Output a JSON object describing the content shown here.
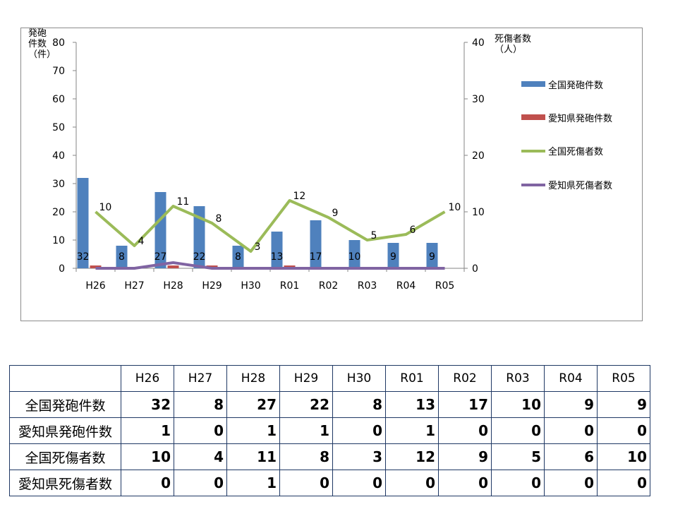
{
  "chart_data": {
    "type": "bar",
    "categories": [
      "H26",
      "H27",
      "H28",
      "H29",
      "H30",
      "R01",
      "R02",
      "R03",
      "R04",
      "R05"
    ],
    "series": [
      {
        "name": "全国発砲件数",
        "chart": "bar",
        "axis": "left",
        "color": "#4f81bd",
        "values": [
          32,
          8,
          27,
          22,
          8,
          13,
          17,
          10,
          9,
          9
        ]
      },
      {
        "name": "愛知県発砲件数",
        "chart": "bar",
        "axis": "left",
        "color": "#c0504d",
        "values": [
          1,
          0,
          1,
          1,
          0,
          1,
          0,
          0,
          0,
          0
        ]
      },
      {
        "name": "全国死傷者数",
        "chart": "line",
        "axis": "right",
        "color": "#9bbb59",
        "values": [
          10,
          4,
          11,
          8,
          3,
          12,
          9,
          5,
          6,
          10
        ]
      },
      {
        "name": "愛知県死傷者数",
        "chart": "line",
        "axis": "right",
        "color": "#8064a2",
        "values": [
          0,
          0,
          1,
          0,
          0,
          0,
          0,
          0,
          0,
          0
        ]
      }
    ],
    "ylabel": "発砲\n件数\n（件）",
    "y2label": "死傷者数\n（人）",
    "ylim": [
      0,
      80
    ],
    "y2lim": [
      0,
      40
    ],
    "yticks": [
      0,
      10,
      20,
      30,
      40,
      50,
      60,
      70,
      80
    ],
    "y2ticks": [
      0,
      10,
      20,
      30,
      40
    ],
    "legend_position": "right",
    "grid": false
  },
  "table": {
    "headers": [
      "H26",
      "H27",
      "H28",
      "H29",
      "H30",
      "R01",
      "R02",
      "R03",
      "R04",
      "R05"
    ],
    "rows": [
      {
        "label": "全国発砲件数",
        "values": [
          "32",
          "8",
          "27",
          "22",
          "8",
          "13",
          "17",
          "10",
          "9",
          "9"
        ]
      },
      {
        "label": "愛知県発砲件数",
        "values": [
          "1",
          "0",
          "1",
          "1",
          "0",
          "1",
          "0",
          "0",
          "0",
          "0"
        ]
      },
      {
        "label": "全国死傷者数",
        "values": [
          "10",
          "4",
          "11",
          "8",
          "3",
          "12",
          "9",
          "5",
          "6",
          "10"
        ]
      },
      {
        "label": "愛知県死傷者数",
        "values": [
          "0",
          "0",
          "1",
          "0",
          "0",
          "0",
          "0",
          "0",
          "0",
          "0"
        ]
      }
    ]
  }
}
